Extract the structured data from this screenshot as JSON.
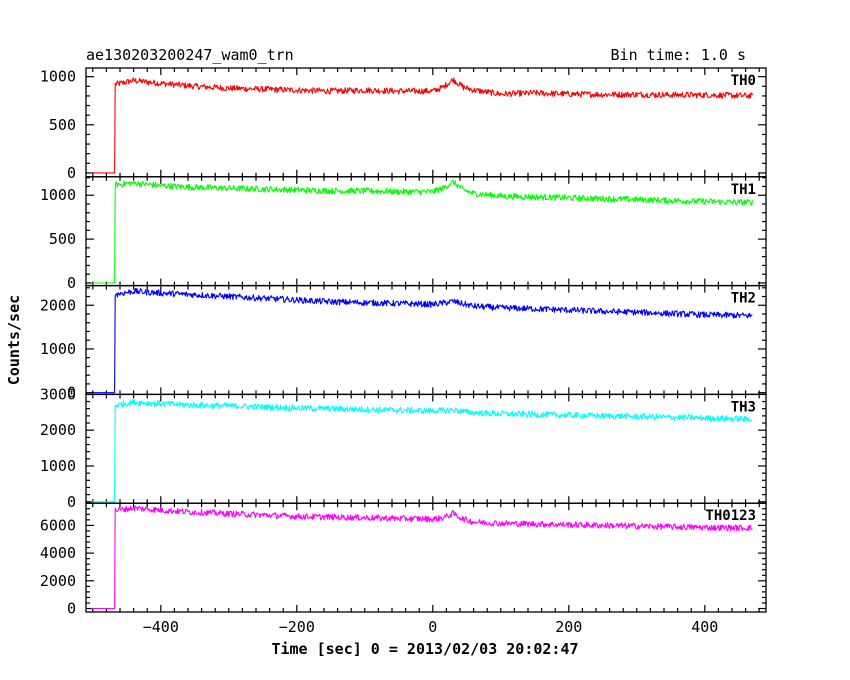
{
  "header": {
    "left": "ae130203200247_wam0_trn",
    "right": "Bin time: 1.0 s"
  },
  "chart_data": {
    "type": "line",
    "title": "ae130203200247_wam0_trn",
    "bin_time_label": "Bin time: 1.0 s",
    "xlabel": "Time [sec] 0 = 2013/02/03 20:02:47",
    "ylabel": "Counts/sec",
    "xlim": [
      -510,
      490
    ],
    "xticks": [
      -400,
      -200,
      0,
      200,
      400
    ],
    "xtick_labels": [
      "−400",
      "−200",
      "0",
      "200",
      "400"
    ],
    "grid": false,
    "onset_time": -468,
    "panels": [
      {
        "name": "TH0",
        "color": "#ff0000",
        "ylim": [
          -40,
          1090
        ],
        "yticks": [
          0,
          500,
          1000
        ],
        "ytick_labels": [
          "0",
          "500",
          "1000"
        ],
        "series": {
          "x": [
            -502,
            -468,
            -467,
            -440,
            -400,
            -350,
            -300,
            -250,
            -200,
            -150,
            -100,
            -50,
            0,
            15,
            30,
            45,
            60,
            100,
            150,
            200,
            250,
            300,
            350,
            400,
            440,
            470
          ],
          "y": [
            0,
            0,
            920,
            960,
            930,
            900,
            880,
            870,
            860,
            850,
            860,
            850,
            850,
            890,
            970,
            890,
            860,
            820,
            830,
            820,
            815,
            815,
            810,
            810,
            805,
            800
          ]
        }
      },
      {
        "name": "TH1",
        "color": "#00ff00",
        "ylim": [
          -30,
          1210
        ],
        "yticks": [
          0,
          500,
          1000
        ],
        "ytick_labels": [
          "0",
          "500",
          "1000"
        ],
        "series": {
          "x": [
            -502,
            -468,
            -467,
            -440,
            -400,
            -350,
            -300,
            -250,
            -200,
            -150,
            -100,
            -50,
            0,
            15,
            30,
            45,
            60,
            100,
            150,
            200,
            250,
            300,
            350,
            400,
            440,
            470
          ],
          "y": [
            0,
            0,
            1120,
            1140,
            1110,
            1090,
            1080,
            1070,
            1060,
            1050,
            1050,
            1040,
            1040,
            1080,
            1150,
            1060,
            1020,
            990,
            980,
            970,
            960,
            950,
            940,
            930,
            920,
            920
          ]
        }
      },
      {
        "name": "TH2",
        "color": "#0000ff",
        "ylim": [
          -40,
          2450
        ],
        "yticks": [
          0,
          1000,
          2000
        ],
        "ytick_labels": [
          "0",
          "1000",
          "2000"
        ],
        "series": {
          "x": [
            -502,
            -468,
            -467,
            -440,
            -400,
            -350,
            -300,
            -250,
            -200,
            -150,
            -100,
            -50,
            0,
            15,
            30,
            45,
            60,
            100,
            150,
            200,
            250,
            300,
            350,
            400,
            440,
            470
          ],
          "y": [
            0,
            0,
            2250,
            2320,
            2280,
            2240,
            2200,
            2160,
            2120,
            2080,
            2060,
            2040,
            2020,
            2050,
            2090,
            2030,
            1980,
            1940,
            1920,
            1890,
            1860,
            1840,
            1810,
            1780,
            1770,
            1760
          ]
        }
      },
      {
        "name": "TH3",
        "color": "#00ffff",
        "ylim": [
          -40,
          3000
        ],
        "yticks": [
          0,
          1000,
          2000,
          3000
        ],
        "ytick_labels": [
          "0",
          "1000",
          "2000",
          "3000"
        ],
        "series": {
          "x": [
            -502,
            -468,
            -467,
            -440,
            -400,
            -350,
            -300,
            -250,
            -200,
            -150,
            -100,
            -50,
            0,
            15,
            30,
            45,
            60,
            100,
            150,
            200,
            250,
            300,
            350,
            400,
            440,
            470
          ],
          "y": [
            0,
            0,
            2700,
            2780,
            2740,
            2700,
            2680,
            2650,
            2620,
            2600,
            2580,
            2560,
            2540,
            2550,
            2570,
            2520,
            2490,
            2460,
            2440,
            2420,
            2400,
            2380,
            2360,
            2340,
            2320,
            2310
          ]
        }
      },
      {
        "name": "TH0123",
        "color": "#ff00ff",
        "ylim": [
          -250,
          7600
        ],
        "yticks": [
          0,
          2000,
          4000,
          6000
        ],
        "ytick_labels": [
          "0",
          "2000",
          "4000",
          "6000"
        ],
        "series": {
          "x": [
            -502,
            -468,
            -467,
            -440,
            -400,
            -350,
            -300,
            -250,
            -200,
            -150,
            -100,
            -50,
            0,
            15,
            30,
            45,
            60,
            100,
            150,
            200,
            250,
            300,
            350,
            400,
            440,
            470
          ],
          "y": [
            0,
            0,
            7100,
            7250,
            7100,
            6950,
            6850,
            6750,
            6650,
            6600,
            6550,
            6500,
            6450,
            6550,
            6850,
            6450,
            6250,
            6150,
            6100,
            6050,
            6000,
            5950,
            5900,
            5850,
            5830,
            5820
          ]
        }
      }
    ]
  }
}
